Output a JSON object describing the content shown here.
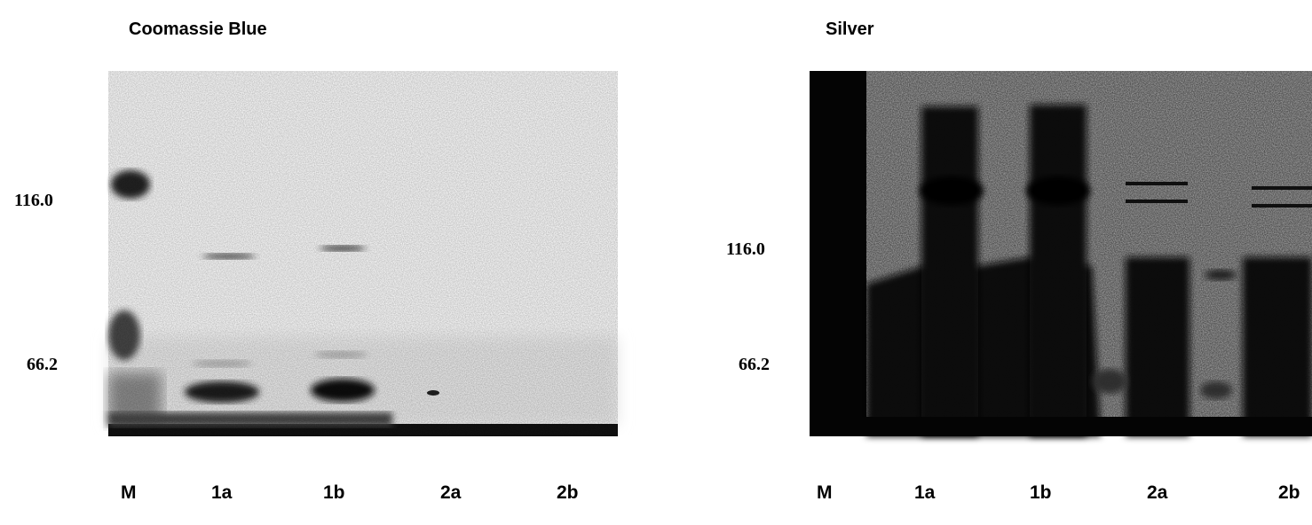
{
  "panels": [
    {
      "title": "Coomassie Blue",
      "markers": [
        "116.0",
        "66.2"
      ],
      "lanes": [
        "M",
        "1a",
        "1b",
        "2a",
        "2b"
      ]
    },
    {
      "title": "Silver",
      "markers": [
        "116.0",
        "66.2"
      ],
      "lanes": [
        "M",
        "1a",
        "1b",
        "2a",
        "2b"
      ]
    }
  ]
}
